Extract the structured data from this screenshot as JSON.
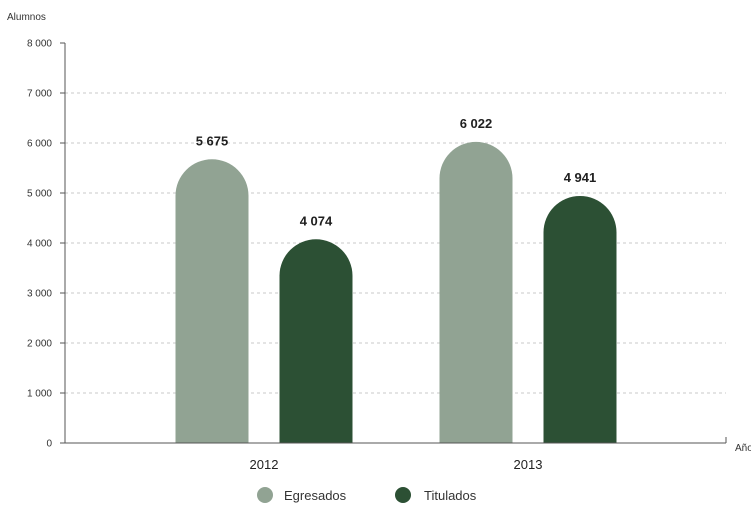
{
  "chart_data": {
    "type": "bar",
    "ylabel": "Alumnos",
    "xlabel": "Años",
    "categories": [
      "2012",
      "2013"
    ],
    "ylim": [
      0,
      8000
    ],
    "yticks": [
      0,
      1000,
      2000,
      3000,
      4000,
      5000,
      6000,
      7000,
      8000
    ],
    "ytick_labels": [
      "0",
      "1 000",
      "2 000",
      "3 000",
      "4 000",
      "5 000",
      "6 000",
      "7 000",
      "8 000"
    ],
    "grid": "horizontal dashed",
    "legend_position": "bottom-center",
    "series": [
      {
        "name": "Egresados",
        "color": "#91a393",
        "values": [
          5675,
          6022
        ],
        "labels": [
          "5 675",
          "6 022"
        ]
      },
      {
        "name": "Titulados",
        "color": "#2c5034",
        "values": [
          4074,
          4941
        ],
        "labels": [
          "4 074",
          "4 941"
        ]
      }
    ]
  }
}
